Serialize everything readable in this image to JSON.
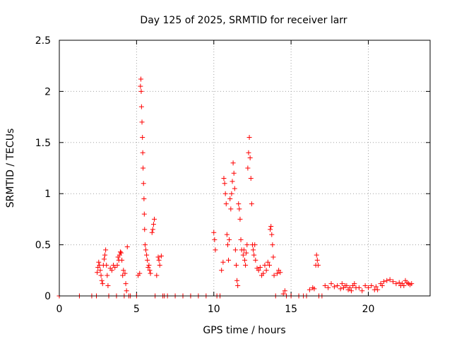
{
  "chart_data": {
    "type": "scatter",
    "title": "Day 125 of 2025, SRMTID for receiver larr",
    "xlabel": "GPS time / hours",
    "ylabel": "SRMTID / TECUs",
    "xlim": [
      0,
      24
    ],
    "ylim": [
      0,
      2.5
    ],
    "xticks": [
      0,
      5,
      10,
      15,
      20
    ],
    "xtick_labels": [
      "0",
      "5",
      "10",
      "15",
      "20"
    ],
    "yticks": [
      0,
      0.5,
      1,
      1.5,
      2,
      2.5
    ],
    "ytick_labels": [
      "0",
      "0.5",
      "1",
      "1.5",
      "2",
      "2.5"
    ],
    "grid": true,
    "marker": "+",
    "marker_color": "#ff0000",
    "series": [
      {
        "name": "SRMTID",
        "points": [
          [
            0.0,
            0.0
          ],
          [
            1.3,
            0.0
          ],
          [
            2.1,
            0.0
          ],
          [
            2.4,
            0.0
          ],
          [
            2.45,
            0.23
          ],
          [
            2.5,
            0.28
          ],
          [
            2.55,
            0.33
          ],
          [
            2.6,
            0.3
          ],
          [
            2.65,
            0.25
          ],
          [
            2.7,
            0.2
          ],
          [
            2.75,
            0.15
          ],
          [
            2.8,
            0.12
          ],
          [
            2.85,
            0.3
          ],
          [
            2.9,
            0.36
          ],
          [
            2.95,
            0.4
          ],
          [
            3.0,
            0.45
          ],
          [
            3.05,
            0.3
          ],
          [
            3.1,
            0.2
          ],
          [
            3.15,
            0.1
          ],
          [
            3.2,
            0.0
          ],
          [
            3.3,
            0.27
          ],
          [
            3.4,
            0.25
          ],
          [
            3.5,
            0.3
          ],
          [
            3.6,
            0.28
          ],
          [
            3.7,
            0.0
          ],
          [
            3.75,
            0.3
          ],
          [
            3.8,
            0.38
          ],
          [
            3.85,
            0.35
          ],
          [
            3.9,
            0.4
          ],
          [
            3.95,
            0.43
          ],
          [
            4.0,
            0.42
          ],
          [
            4.05,
            0.35
          ],
          [
            4.1,
            0.2
          ],
          [
            4.15,
            0.25
          ],
          [
            4.2,
            0.0
          ],
          [
            4.25,
            0.22
          ],
          [
            4.3,
            0.12
          ],
          [
            4.35,
            0.05
          ],
          [
            4.4,
            0.48
          ],
          [
            4.5,
            0.0
          ],
          [
            4.6,
            0.0
          ],
          [
            5.0,
            0.0
          ],
          [
            5.1,
            0.2
          ],
          [
            5.2,
            0.22
          ],
          [
            5.25,
            2.05
          ],
          [
            5.28,
            2.12
          ],
          [
            5.3,
            2.0
          ],
          [
            5.32,
            1.85
          ],
          [
            5.35,
            1.7
          ],
          [
            5.38,
            1.55
          ],
          [
            5.4,
            1.4
          ],
          [
            5.42,
            1.25
          ],
          [
            5.45,
            1.1
          ],
          [
            5.48,
            0.95
          ],
          [
            5.5,
            0.8
          ],
          [
            5.52,
            0.65
          ],
          [
            5.55,
            0.5
          ],
          [
            5.6,
            0.45
          ],
          [
            5.65,
            0.4
          ],
          [
            5.7,
            0.35
          ],
          [
            5.75,
            0.28
          ],
          [
            5.8,
            0.3
          ],
          [
            5.85,
            0.25
          ],
          [
            5.9,
            0.22
          ],
          [
            6.0,
            0.62
          ],
          [
            6.05,
            0.65
          ],
          [
            6.1,
            0.7
          ],
          [
            6.15,
            0.75
          ],
          [
            6.2,
            0.0
          ],
          [
            6.3,
            0.2
          ],
          [
            6.4,
            0.38
          ],
          [
            6.45,
            0.35
          ],
          [
            6.5,
            0.3
          ],
          [
            6.6,
            0.39
          ],
          [
            6.7,
            0.0
          ],
          [
            6.8,
            0.0
          ],
          [
            7.0,
            0.0
          ],
          [
            7.5,
            0.0
          ],
          [
            8.0,
            0.0
          ],
          [
            8.5,
            0.0
          ],
          [
            9.0,
            0.0
          ],
          [
            9.5,
            0.0
          ],
          [
            10.0,
            0.62
          ],
          [
            10.05,
            0.55
          ],
          [
            10.1,
            0.45
          ],
          [
            10.2,
            0.0
          ],
          [
            10.4,
            0.0
          ],
          [
            10.5,
            0.25
          ],
          [
            10.6,
            0.33
          ],
          [
            10.65,
            1.15
          ],
          [
            10.7,
            1.1
          ],
          [
            10.75,
            1.0
          ],
          [
            10.8,
            0.9
          ],
          [
            10.85,
            0.6
          ],
          [
            10.9,
            0.5
          ],
          [
            10.95,
            0.35
          ],
          [
            11.0,
            0.55
          ],
          [
            11.05,
            0.95
          ],
          [
            11.1,
            0.85
          ],
          [
            11.15,
            1.0
          ],
          [
            11.2,
            1.12
          ],
          [
            11.25,
            1.3
          ],
          [
            11.3,
            1.2
          ],
          [
            11.35,
            1.05
          ],
          [
            11.4,
            0.45
          ],
          [
            11.45,
            0.3
          ],
          [
            11.5,
            0.15
          ],
          [
            11.55,
            0.1
          ],
          [
            11.6,
            0.9
          ],
          [
            11.65,
            0.85
          ],
          [
            11.7,
            0.75
          ],
          [
            11.75,
            0.55
          ],
          [
            11.8,
            0.45
          ],
          [
            11.9,
            0.4
          ],
          [
            11.95,
            0.45
          ],
          [
            12.0,
            0.35
          ],
          [
            12.05,
            0.3
          ],
          [
            12.1,
            0.42
          ],
          [
            12.15,
            0.5
          ],
          [
            12.2,
            1.25
          ],
          [
            12.25,
            1.4
          ],
          [
            12.3,
            1.55
          ],
          [
            12.35,
            1.35
          ],
          [
            12.4,
            1.15
          ],
          [
            12.45,
            0.9
          ],
          [
            12.5,
            0.5
          ],
          [
            12.55,
            0.45
          ],
          [
            12.6,
            0.4
          ],
          [
            12.65,
            0.5
          ],
          [
            12.7,
            0.35
          ],
          [
            12.8,
            0.27
          ],
          [
            12.9,
            0.25
          ],
          [
            13.0,
            0.28
          ],
          [
            13.1,
            0.2
          ],
          [
            13.2,
            0.22
          ],
          [
            13.3,
            0.3
          ],
          [
            13.4,
            0.25
          ],
          [
            13.5,
            0.33
          ],
          [
            13.6,
            0.3
          ],
          [
            13.65,
            0.65
          ],
          [
            13.7,
            0.68
          ],
          [
            13.75,
            0.6
          ],
          [
            13.8,
            0.5
          ],
          [
            13.85,
            0.38
          ],
          [
            13.9,
            0.2
          ],
          [
            14.0,
            0.0
          ],
          [
            14.1,
            0.22
          ],
          [
            14.2,
            0.25
          ],
          [
            14.3,
            0.23
          ],
          [
            14.5,
            0.02
          ],
          [
            14.6,
            0.05
          ],
          [
            14.7,
            0.0
          ],
          [
            15.0,
            0.0
          ],
          [
            15.5,
            0.0
          ],
          [
            15.8,
            0.0
          ],
          [
            16.0,
            0.0
          ],
          [
            16.2,
            0.06
          ],
          [
            16.4,
            0.08
          ],
          [
            16.5,
            0.07
          ],
          [
            16.6,
            0.3
          ],
          [
            16.65,
            0.4
          ],
          [
            16.7,
            0.35
          ],
          [
            16.75,
            0.3
          ],
          [
            16.8,
            0.0
          ],
          [
            17.0,
            0.0
          ],
          [
            17.2,
            0.1
          ],
          [
            17.4,
            0.08
          ],
          [
            17.6,
            0.12
          ],
          [
            17.8,
            0.09
          ],
          [
            18.0,
            0.1
          ],
          [
            18.2,
            0.07
          ],
          [
            18.3,
            0.12
          ],
          [
            18.4,
            0.08
          ],
          [
            18.5,
            0.1
          ],
          [
            18.6,
            0.1
          ],
          [
            18.7,
            0.06
          ],
          [
            18.8,
            0.08
          ],
          [
            18.9,
            0.05
          ],
          [
            19.0,
            0.1
          ],
          [
            19.1,
            0.12
          ],
          [
            19.2,
            0.08
          ],
          [
            19.4,
            0.08
          ],
          [
            19.6,
            0.05
          ],
          [
            19.8,
            0.1
          ],
          [
            20.0,
            0.08
          ],
          [
            20.2,
            0.1
          ],
          [
            20.4,
            0.06
          ],
          [
            20.5,
            0.09
          ],
          [
            20.6,
            0.06
          ],
          [
            20.8,
            0.12
          ],
          [
            20.9,
            0.1
          ],
          [
            21.0,
            0.14
          ],
          [
            21.2,
            0.15
          ],
          [
            21.4,
            0.16
          ],
          [
            21.6,
            0.14
          ],
          [
            21.8,
            0.12
          ],
          [
            22.0,
            0.13
          ],
          [
            22.1,
            0.1
          ],
          [
            22.2,
            0.12
          ],
          [
            22.3,
            0.1
          ],
          [
            22.4,
            0.15
          ],
          [
            22.5,
            0.13
          ],
          [
            22.6,
            0.12
          ],
          [
            22.7,
            0.11
          ],
          [
            22.8,
            0.12
          ]
        ]
      }
    ]
  }
}
